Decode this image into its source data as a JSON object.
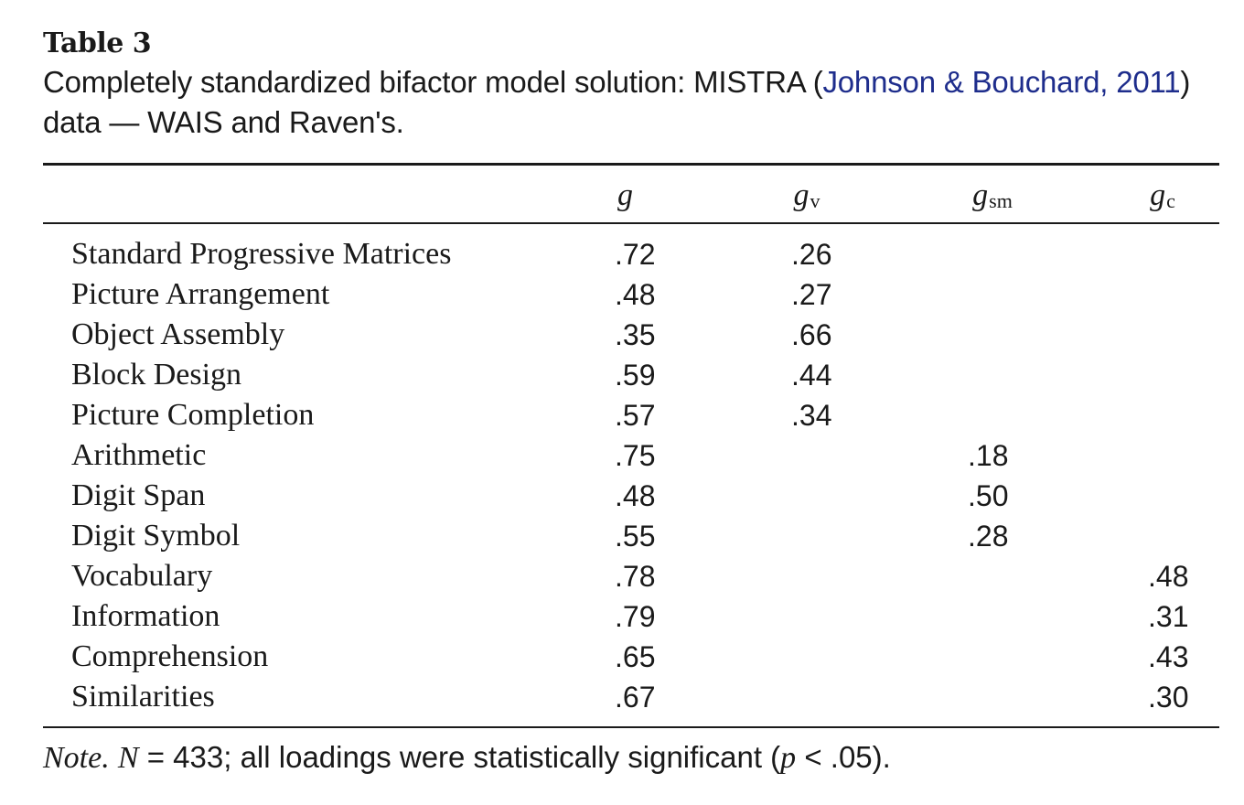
{
  "table": {
    "label": "Table 3",
    "caption_before": "Completely standardized bifactor model solution: MISTRA (",
    "caption_link": "Johnson & Bouchard, 2011",
    "caption_after": ")",
    "caption_line2": "data — WAIS and Raven's.",
    "headers": [
      {
        "main": "g",
        "sub": ""
      },
      {
        "main": "g",
        "sub": "v"
      },
      {
        "main": "g",
        "sub": "sm"
      },
      {
        "main": "g",
        "sub": "c"
      }
    ],
    "rows": [
      {
        "label": "Standard Progressive Matrices",
        "g": ".72",
        "gv": ".26",
        "gsm": "",
        "gc": ""
      },
      {
        "label": "Picture Arrangement",
        "g": ".48",
        "gv": ".27",
        "gsm": "",
        "gc": ""
      },
      {
        "label": "Object Assembly",
        "g": ".35",
        "gv": ".66",
        "gsm": "",
        "gc": ""
      },
      {
        "label": "Block Design",
        "g": ".59",
        "gv": ".44",
        "gsm": "",
        "gc": ""
      },
      {
        "label": "Picture Completion",
        "g": ".57",
        "gv": ".34",
        "gsm": "",
        "gc": ""
      },
      {
        "label": "Arithmetic",
        "g": ".75",
        "gv": "",
        "gsm": ".18",
        "gc": ""
      },
      {
        "label": "Digit Span",
        "g": ".48",
        "gv": "",
        "gsm": ".50",
        "gc": ""
      },
      {
        "label": "Digit Symbol",
        "g": ".55",
        "gv": "",
        "gsm": ".28",
        "gc": ""
      },
      {
        "label": "Vocabulary",
        "g": ".78",
        "gv": "",
        "gsm": "",
        "gc": ".48"
      },
      {
        "label": "Information",
        "g": ".79",
        "gv": "",
        "gsm": "",
        "gc": ".31"
      },
      {
        "label": "Comprehension",
        "g": ".65",
        "gv": "",
        "gsm": "",
        "gc": ".43"
      },
      {
        "label": "Similarities",
        "g": ".67",
        "gv": "",
        "gsm": "",
        "gc": ".30"
      }
    ],
    "note": {
      "note_label": "Note.",
      "n_label": "N",
      "text_a": " = 433; all loadings were statistically significant (",
      "p_label": "p",
      "text_b": " < .05)."
    }
  },
  "colors": {
    "link": "#1e2d8c",
    "text": "#1a1a1a"
  }
}
